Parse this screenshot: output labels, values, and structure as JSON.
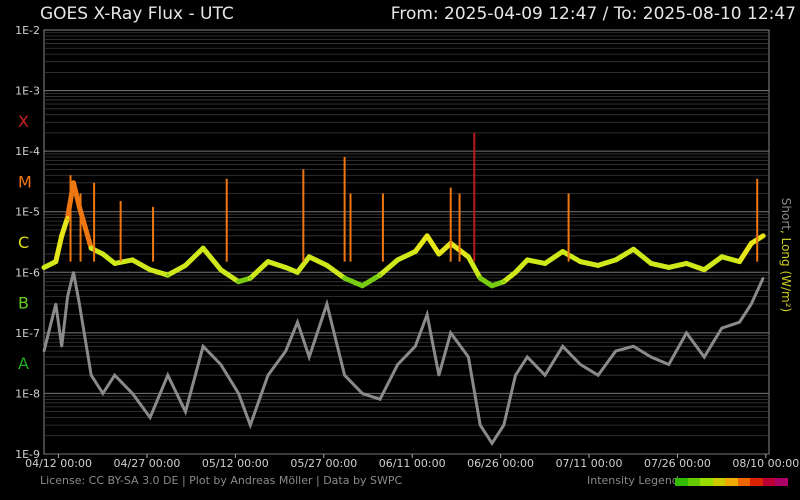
{
  "header": {
    "title": "GOES X-Ray Flux - UTC",
    "range": "From: 2025-04-09 12:47  /  To: 2025-08-10 12:47"
  },
  "footer": {
    "license": "License: CC BY-SA 3.0 DE | Plot by Andreas Möller | Data by SWPC",
    "legend_label": "Intensity Legend",
    "legend_colors": [
      "#33bb00",
      "#66cc00",
      "#99dd00",
      "#cccc00",
      "#eeaa00",
      "#ee6600",
      "#dd2200",
      "#bb0033",
      "#aa0066"
    ]
  },
  "chart_data": {
    "type": "line",
    "title": "GOES X-Ray Flux - UTC",
    "y_scale": "log",
    "ylim": [
      1e-09,
      0.01
    ],
    "ylabel_parts": {
      "short": "Short",
      "sep": ", ",
      "long": "Long (W/m²)"
    },
    "y_ticks": [
      "1E-2",
      "1E-3",
      "1E-4",
      "1E-5",
      "1E-6",
      "1E-7",
      "1E-8",
      "1E-9"
    ],
    "flare_classes": [
      {
        "label": "X",
        "color": "#cc2222"
      },
      {
        "label": "M",
        "color": "#ee7711"
      },
      {
        "label": "C",
        "color": "#dddd11"
      },
      {
        "label": "B",
        "color": "#66cc22"
      },
      {
        "label": "A",
        "color": "#22aa22"
      }
    ],
    "x_ticks": [
      "04/12 00:00",
      "04/27 00:00",
      "05/12 00:00",
      "05/27 00:00",
      "06/11 00:00",
      "06/26 00:00",
      "07/11 00:00",
      "07/26 00:00",
      "08/10 00:00"
    ],
    "x_range": [
      "2025-04-09 12:47",
      "2025-08-10 12:47"
    ],
    "grid": true,
    "series": [
      {
        "name": "Long",
        "color_by_intensity": true,
        "x_days": [
          0,
          2,
          3,
          4,
          5,
          6,
          8,
          10,
          12,
          15,
          18,
          21,
          24,
          27,
          30,
          33,
          35,
          38,
          41,
          43,
          45,
          48,
          51,
          54,
          57,
          60,
          63,
          65,
          67,
          69,
          72,
          74,
          76,
          78,
          80,
          82,
          85,
          88,
          91,
          94,
          97,
          100,
          103,
          106,
          109,
          112,
          115,
          118,
          120,
          122
        ],
        "y": [
          1.2e-06,
          1.5e-06,
          4e-06,
          8e-06,
          3e-05,
          1.2e-05,
          2.5e-06,
          2e-06,
          1.4e-06,
          1.6e-06,
          1.1e-06,
          9e-07,
          1.3e-06,
          2.5e-06,
          1.1e-06,
          7e-07,
          8e-07,
          1.5e-06,
          1.2e-06,
          1e-06,
          1.8e-06,
          1.3e-06,
          8e-07,
          6e-07,
          9e-07,
          1.6e-06,
          2.2e-06,
          4e-06,
          2e-06,
          3e-06,
          1.8e-06,
          8e-07,
          6e-07,
          7e-07,
          1e-06,
          1.6e-06,
          1.4e-06,
          2.2e-06,
          1.5e-06,
          1.3e-06,
          1.6e-06,
          2.4e-06,
          1.4e-06,
          1.2e-06,
          1.4e-06,
          1.1e-06,
          1.8e-06,
          1.5e-06,
          3e-06,
          4e-06
        ]
      },
      {
        "name": "Short",
        "color": "#8a8a8a",
        "x_days": [
          0,
          2,
          3,
          4,
          5,
          6,
          8,
          10,
          12,
          15,
          18,
          21,
          24,
          27,
          30,
          33,
          35,
          38,
          41,
          43,
          45,
          48,
          51,
          54,
          57,
          60,
          63,
          65,
          67,
          69,
          72,
          74,
          76,
          78,
          80,
          82,
          85,
          88,
          91,
          94,
          97,
          100,
          103,
          106,
          109,
          112,
          115,
          118,
          120,
          122
        ],
        "y": [
          5e-08,
          3e-07,
          6e-08,
          4e-07,
          1e-06,
          3e-07,
          2e-08,
          1e-08,
          2e-08,
          1e-08,
          4e-09,
          2e-08,
          5e-09,
          6e-08,
          3e-08,
          1e-08,
          3e-09,
          2e-08,
          5e-08,
          1.5e-07,
          4e-08,
          3e-07,
          2e-08,
          1e-08,
          8e-09,
          3e-08,
          6e-08,
          2e-07,
          2e-08,
          1e-07,
          4e-08,
          3e-09,
          1.5e-09,
          3e-09,
          2e-08,
          4e-08,
          2e-08,
          6e-08,
          3e-08,
          2e-08,
          5e-08,
          6e-08,
          4e-08,
          3e-08,
          1e-07,
          4e-08,
          1.2e-07,
          1.5e-07,
          3e-07,
          8e-07
        ]
      }
    ],
    "flare_spikes": [
      {
        "x_day": 4.5,
        "y": 4e-05
      },
      {
        "x_day": 6.2,
        "y": 2e-05
      },
      {
        "x_day": 8.5,
        "y": 3e-05
      },
      {
        "x_day": 13,
        "y": 1.5e-05
      },
      {
        "x_day": 18.5,
        "y": 1.2e-05
      },
      {
        "x_day": 31,
        "y": 3.5e-05
      },
      {
        "x_day": 44,
        "y": 5e-05
      },
      {
        "x_day": 51,
        "y": 8e-05
      },
      {
        "x_day": 52,
        "y": 2e-05
      },
      {
        "x_day": 57.5,
        "y": 2e-05
      },
      {
        "x_day": 69,
        "y": 2.5e-05
      },
      {
        "x_day": 70.5,
        "y": 2e-05
      },
      {
        "x_day": 73,
        "y": 0.0002
      },
      {
        "x_day": 89,
        "y": 2e-05
      },
      {
        "x_day": 121,
        "y": 3.5e-05
      }
    ]
  }
}
